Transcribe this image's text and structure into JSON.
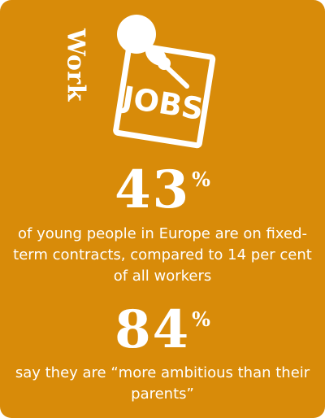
{
  "card": {
    "background_color": "#d88b09",
    "text_color": "#ffffff"
  },
  "section_label": "Work",
  "illustration": {
    "sign_text": "JOBS",
    "icon": "jobs-sign-with-pushpin-icon"
  },
  "stats": [
    {
      "value": "43",
      "unit": "%",
      "description": "of young people in Europe are on fixed-term contracts, compared to  14 per cent of all workers"
    },
    {
      "value": "84",
      "unit": "%",
      "description": "say they are “more ambitious than their parents”"
    }
  ]
}
